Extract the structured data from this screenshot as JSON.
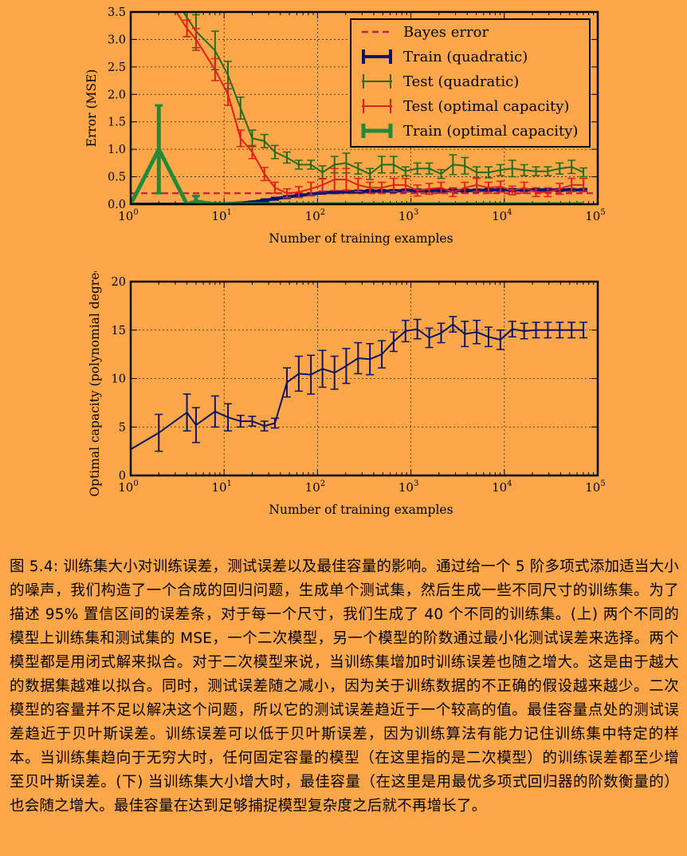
{
  "chart_data": [
    {
      "type": "line",
      "xlabel": "Number of training examples",
      "ylabel": "Error (MSE)",
      "xscale": "log",
      "xlim": [
        1,
        100000
      ],
      "ylim": [
        0,
        3.5
      ],
      "x_ticks": [
        1,
        10,
        100,
        1000,
        10000,
        100000
      ],
      "x_tick_labels": [
        {
          "base": "10",
          "exp": "0"
        },
        {
          "base": "10",
          "exp": "1"
        },
        {
          "base": "10",
          "exp": "2"
        },
        {
          "base": "10",
          "exp": "3"
        },
        {
          "base": "10",
          "exp": "4"
        },
        {
          "base": "10",
          "exp": "5"
        }
      ],
      "y_ticks": [
        0,
        0.5,
        1.0,
        1.5,
        2.0,
        2.5,
        3.0,
        3.5
      ],
      "y_tick_labels": [
        "0.0",
        "0.5",
        "1.0",
        "1.5",
        "2.0",
        "2.5",
        "3.0",
        "3.5"
      ],
      "grid": true,
      "legend_position": "top-right",
      "bayes_error": 0.2,
      "series": [
        {
          "name": "Bayes error",
          "style": "dashed",
          "color": "#c0204a",
          "x": [
            1,
            100000
          ],
          "y": [
            0.2,
            0.2
          ]
        },
        {
          "name": "Train (quadratic)",
          "color": "#0a1470",
          "linewidth": 4,
          "x": [
            1,
            2,
            4,
            5,
            8,
            11,
            15,
            20,
            27,
            35,
            47,
            63,
            85,
            113,
            152,
            203,
            272,
            364,
            488,
            653,
            875,
            1172,
            1570,
            2104,
            2818,
            3775,
            5058,
            6776,
            9078,
            12162,
            16294,
            21829,
            29245,
            39180,
            52489,
            70320
          ],
          "y": [
            0,
            0,
            0,
            0,
            0.01,
            0.01,
            0.02,
            0.04,
            0.07,
            0.1,
            0.13,
            0.16,
            0.18,
            0.21,
            0.22,
            0.23,
            0.23,
            0.24,
            0.24,
            0.24,
            0.25,
            0.25,
            0.25,
            0.25,
            0.25,
            0.25,
            0.25,
            0.26,
            0.26,
            0.26,
            0.26,
            0.26,
            0.26,
            0.26,
            0.26,
            0.26
          ],
          "err": [
            0,
            0,
            0,
            0,
            0.01,
            0.01,
            0.01,
            0.01,
            0.02,
            0.02,
            0.02,
            0.02,
            0.02,
            0.02,
            0.02,
            0.02,
            0.02,
            0.02,
            0.02,
            0.02,
            0.02,
            0.02,
            0.02,
            0.02,
            0.02,
            0.02,
            0.02,
            0.02,
            0.02,
            0.02,
            0.02,
            0.02,
            0.02,
            0.02,
            0.02,
            0.02
          ]
        },
        {
          "name": "Test (quadratic)",
          "color": "#246c1a",
          "linewidth": 2,
          "x": [
            2,
            4,
            5,
            8,
            11,
            15,
            20,
            27,
            35,
            47,
            63,
            85,
            113,
            152,
            203,
            272,
            364,
            488,
            653,
            875,
            1172,
            1570,
            2104,
            2818,
            3775,
            5058,
            6776,
            9078,
            12162,
            16294,
            21829,
            29245,
            39180,
            52489,
            70320
          ],
          "y": [
            4.2,
            3.4,
            3.15,
            2.8,
            2.35,
            1.75,
            1.2,
            1.15,
            0.95,
            0.85,
            0.72,
            0.72,
            0.58,
            0.72,
            0.75,
            0.65,
            0.55,
            0.72,
            0.72,
            0.6,
            0.65,
            0.65,
            0.55,
            0.72,
            0.7,
            0.58,
            0.58,
            0.62,
            0.65,
            0.62,
            0.6,
            0.6,
            0.65,
            0.68,
            0.58
          ],
          "err": [
            0.6,
            0.35,
            0.3,
            0.35,
            0.25,
            0.2,
            0.15,
            0.12,
            0.12,
            0.1,
            0.08,
            0.08,
            0.12,
            0.15,
            0.18,
            0.1,
            0.1,
            0.15,
            0.15,
            0.08,
            0.1,
            0.1,
            0.08,
            0.18,
            0.15,
            0.1,
            0.1,
            0.1,
            0.15,
            0.1,
            0.08,
            0.08,
            0.1,
            0.12,
            0.08
          ]
        },
        {
          "name": "Test (optimal capacity)",
          "color": "#e0201a",
          "linewidth": 2,
          "x": [
            2,
            4,
            5,
            8,
            11,
            15,
            20,
            27,
            35,
            47,
            63,
            85,
            113,
            152,
            203,
            272,
            364,
            488,
            653,
            875,
            1172,
            1570,
            2104,
            2818,
            3775,
            5058,
            6776,
            9078,
            12162,
            16294,
            21829,
            29245,
            39180,
            52489,
            70320
          ],
          "y": [
            4.0,
            3.2,
            3.0,
            2.45,
            2.0,
            1.2,
            0.95,
            0.55,
            0.3,
            0.2,
            0.22,
            0.28,
            0.35,
            0.45,
            0.45,
            0.35,
            0.3,
            0.3,
            0.35,
            0.35,
            0.25,
            0.28,
            0.3,
            0.22,
            0.3,
            0.35,
            0.3,
            0.32,
            0.25,
            0.3,
            0.22,
            0.22,
            0.28,
            0.35,
            0.35
          ],
          "err": [
            0.5,
            0.15,
            0.2,
            0.2,
            0.2,
            0.15,
            0.12,
            0.12,
            0.1,
            0.08,
            0.1,
            0.12,
            0.12,
            0.2,
            0.2,
            0.12,
            0.1,
            0.1,
            0.12,
            0.12,
            0.1,
            0.1,
            0.1,
            0.08,
            0.1,
            0.12,
            0.1,
            0.1,
            0.08,
            0.1,
            0.08,
            0.08,
            0.1,
            0.12,
            0.12
          ]
        },
        {
          "name": "Train (optimal capacity)",
          "color": "#228b3a",
          "linewidth": 5,
          "x": [
            1,
            2,
            4,
            5,
            8,
            11,
            15,
            20,
            27,
            35,
            47,
            63,
            85,
            113,
            152,
            203,
            272,
            364,
            488,
            653,
            875,
            1172,
            1570,
            2104,
            2818,
            3775,
            5058,
            6776,
            9078,
            12162,
            16294,
            21829,
            29245,
            39180,
            52489,
            70320
          ],
          "y": [
            0,
            1.0,
            0,
            0.05,
            0,
            0,
            0,
            0,
            0,
            0,
            0,
            0,
            0,
            0,
            0,
            0,
            0,
            0,
            0,
            0,
            0,
            0,
            0,
            0,
            0,
            0,
            0,
            0,
            0,
            0,
            0,
            0,
            0,
            0,
            0,
            0
          ],
          "err": [
            0,
            0.8,
            0,
            0.1,
            0,
            0,
            0,
            0,
            0,
            0,
            0,
            0,
            0,
            0,
            0,
            0,
            0,
            0,
            0,
            0,
            0,
            0,
            0,
            0,
            0,
            0,
            0,
            0,
            0,
            0,
            0,
            0,
            0,
            0,
            0,
            0
          ]
        }
      ]
    },
    {
      "type": "line",
      "xlabel": "Number of training examples",
      "ylabel": "Optimal capacity (polynomial degree)",
      "xscale": "log",
      "xlim": [
        1,
        100000
      ],
      "ylim": [
        0,
        20
      ],
      "x_ticks": [
        1,
        10,
        100,
        1000,
        10000,
        100000
      ],
      "x_tick_labels": [
        {
          "base": "10",
          "exp": "0"
        },
        {
          "base": "10",
          "exp": "1"
        },
        {
          "base": "10",
          "exp": "2"
        },
        {
          "base": "10",
          "exp": "3"
        },
        {
          "base": "10",
          "exp": "4"
        },
        {
          "base": "10",
          "exp": "5"
        }
      ],
      "y_ticks": [
        0,
        5,
        10,
        15,
        20
      ],
      "y_tick_labels": [
        "0",
        "5",
        "10",
        "15",
        "20"
      ],
      "grid": true,
      "series": [
        {
          "color": "#0a1460",
          "linewidth": 2,
          "x": [
            1,
            2,
            4,
            5,
            8,
            11,
            15,
            20,
            27,
            35,
            47,
            63,
            85,
            113,
            152,
            203,
            272,
            364,
            488,
            653,
            875,
            1172,
            1570,
            2104,
            2818,
            3775,
            5058,
            6776,
            9078,
            12162,
            16294,
            21829,
            29245,
            39180,
            52489,
            70320
          ],
          "y": [
            2.7,
            4.4,
            6.5,
            5.2,
            6.6,
            6.0,
            5.6,
            5.6,
            5.1,
            5.4,
            9.6,
            10.5,
            10.4,
            11.0,
            10.6,
            11.3,
            12.1,
            12.0,
            12.5,
            13.8,
            14.9,
            15.1,
            14.2,
            14.7,
            15.6,
            14.6,
            14.8,
            14.3,
            14.0,
            15.1,
            14.9,
            15.0,
            15.0,
            15.0,
            15.0,
            15.0
          ],
          "err": [
            0,
            1.9,
            1.9,
            1.8,
            1.6,
            1.4,
            0.6,
            0.5,
            0.5,
            0.5,
            1.5,
            1.8,
            2.0,
            1.9,
            1.7,
            1.8,
            1.6,
            1.6,
            1.4,
            1.0,
            1.1,
            1.0,
            1.0,
            1.0,
            0.8,
            1.3,
            1.2,
            1.0,
            1.0,
            0.8,
            0.8,
            0.8,
            0.8,
            0.8,
            0.8,
            0.8
          ]
        }
      ]
    }
  ],
  "caption": {
    "text": "图 5.4: 训练集大小对训练误差，测试误差以及最佳容量的影响。通过给一个 5 阶多项式添加适当大小的噪声，我们构造了一个合成的回归问题，生成单个测试集，然后生成一些不同尺寸的训练集。为了描述 95% 置信区间的误差条，对于每一个尺寸，我们生成了 40 个不同的训练集。(上) 两个不同的模型上训练集和测试集的 MSE，一个二次模型，另一个模型的阶数通过最小化测试误差来选择。两个模型都是用闭式解来拟合。对于二次模型来说，当训练集增加时训练误差也随之增大。这是由于越大的数据集越难以拟合。同时，测试误差随之减小，因为关于训练数据的不正确的假设越来越少。二次模型的容量并不足以解决这个问题，所以它的测试误差趋近于一个较高的值。最佳容量点处的测试误差趋近于贝叶斯误差。训练误差可以低于贝叶斯误差，因为训练算法有能力记住训练集中特定的样本。当训练集趋向于无穷大时，任何固定容量的模型（在这里指的是二次模型）的训练误差都至少增至贝叶斯误差。(下) 当训练集大小增大时，最佳容量（在这里是用最优多项式回归器的阶数衡量的）也会随之增大。最佳容量在达到足够捕捉模型复杂度之后就不再增长了。"
  }
}
